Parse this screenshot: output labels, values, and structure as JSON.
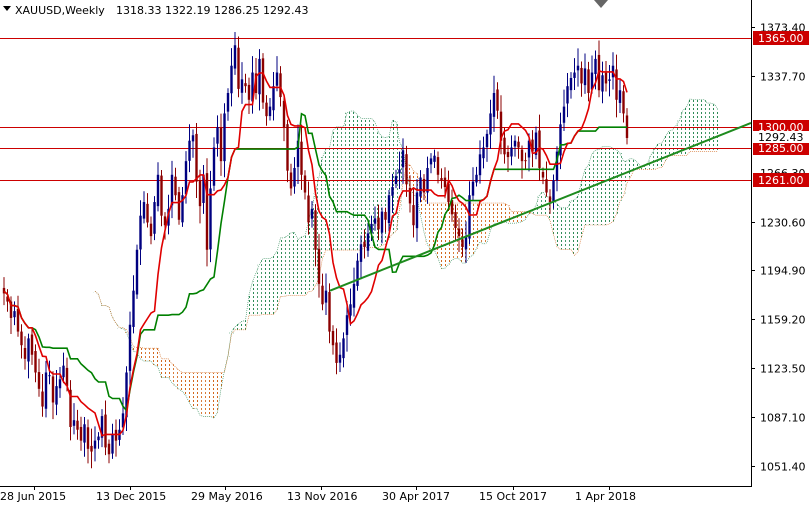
{
  "header": {
    "symbol": "XAUUSD,Weekly",
    "ohlc": "1318.33 1322.19 1286.25 1292.43"
  },
  "colors": {
    "bull_candle": "#000080",
    "bear_candle": "#8b0000",
    "tenkan": "#e00000",
    "kijun": "#008000",
    "level_line": "#cc0000",
    "level_label_bg": "#cc0000",
    "trendline": "#1e8b1e",
    "cloud_bull": "#2e8b57",
    "cloud_bear": "#d2691e"
  },
  "chart_data": {
    "type": "candlestick",
    "title": "XAUUSD,Weekly",
    "x_tick_labels": [
      "28 Jun 2015",
      "13 Dec 2015",
      "29 May 2016",
      "13 Nov 2016",
      "30 Apr 2017",
      "15 Oct 2017",
      "1 Apr 2018"
    ],
    "y_tick_labels": [
      "1373.40",
      "1337.70",
      "1230.60",
      "1194.90",
      "1159.20",
      "1123.50",
      "1087.10",
      "1051.40"
    ],
    "ylim": [
      1040,
      1392
    ],
    "horizontal_levels": [
      {
        "value": 1365.0,
        "label": "1365.00"
      },
      {
        "value": 1300.0,
        "label": "1300.00"
      },
      {
        "value": 1285.0,
        "label": "1285.00"
      },
      {
        "value": 1261.0,
        "label": "1261.00"
      }
    ],
    "current_price_label": "1292.43",
    "hidden_tick_label": "1266.30",
    "trendline": {
      "from": {
        "x": "13 Nov 2016",
        "y": 1180
      },
      "to": {
        "x": "right-edge",
        "y": 1303
      }
    },
    "closes": [
      1178,
      1172,
      1160,
      1165,
      1150,
      1140,
      1130,
      1145,
      1133,
      1120,
      1108,
      1095,
      1120,
      1118,
      1098,
      1110,
      1115,
      1125,
      1110,
      1080,
      1085,
      1078,
      1070,
      1082,
      1064,
      1062,
      1070,
      1073,
      1088,
      1065,
      1060,
      1075,
      1070,
      1078,
      1090,
      1120,
      1155,
      1180,
      1210,
      1235,
      1245,
      1230,
      1220,
      1245,
      1265,
      1235,
      1228,
      1240,
      1265,
      1250,
      1232,
      1250,
      1275,
      1290,
      1294,
      1260,
      1242,
      1265,
      1210,
      1255,
      1285,
      1300,
      1275,
      1310,
      1325,
      1345,
      1360,
      1328,
      1335,
      1330,
      1320,
      1340,
      1325,
      1350,
      1318,
      1308,
      1315,
      1330,
      1340,
      1322,
      1300,
      1268,
      1255,
      1270,
      1290,
      1265,
      1252,
      1230,
      1240,
      1210,
      1185,
      1170,
      1180,
      1150,
      1140,
      1127,
      1133,
      1145,
      1162,
      1170,
      1185,
      1202,
      1214,
      1212,
      1222,
      1229,
      1233,
      1225,
      1238,
      1232,
      1250,
      1256,
      1264,
      1269,
      1283,
      1258,
      1244,
      1228,
      1252,
      1263,
      1252,
      1270,
      1277,
      1279,
      1265,
      1261,
      1256,
      1245,
      1236,
      1226,
      1220,
      1212,
      1220,
      1250,
      1260,
      1265,
      1280,
      1285,
      1295,
      1310,
      1325,
      1312,
      1290,
      1280,
      1278,
      1285,
      1290,
      1285,
      1275,
      1275,
      1290,
      1282,
      1296,
      1270,
      1263,
      1252,
      1245,
      1261,
      1282,
      1302,
      1315,
      1330,
      1336,
      1340,
      1345,
      1332,
      1343,
      1325,
      1340,
      1350,
      1327,
      1338,
      1332,
      1335,
      1345,
      1320,
      1327,
      1310,
      1292
    ]
  }
}
